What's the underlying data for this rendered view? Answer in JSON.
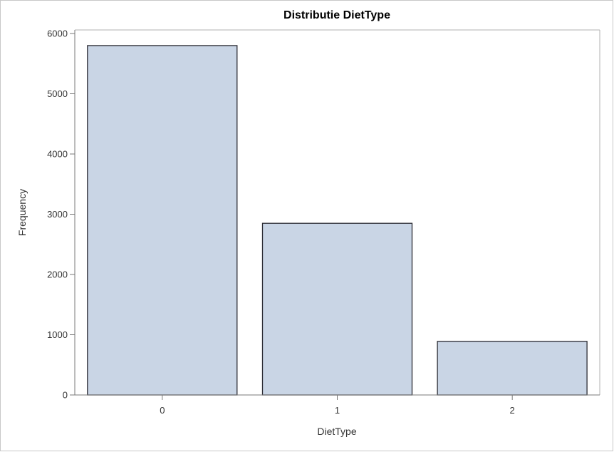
{
  "chart_data": {
    "type": "bar",
    "title": "Distributie DietType",
    "xlabel": "DietType",
    "ylabel": "Frequency",
    "categories": [
      "0",
      "1",
      "2"
    ],
    "values": [
      5800,
      2850,
      890
    ],
    "ylim": [
      0,
      6000
    ],
    "yticks": [
      "0",
      "1000",
      "2000",
      "3000",
      "4000",
      "5000",
      "6000"
    ],
    "grid": false,
    "colors": {
      "bar_fill": "#c9d5e5",
      "bar_outline": "#2b2b33"
    }
  }
}
